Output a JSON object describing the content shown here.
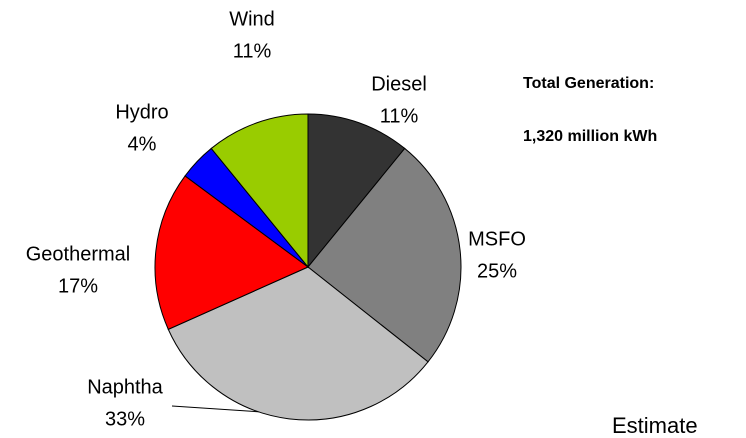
{
  "chart_data": {
    "type": "pie",
    "categories": [
      "Diesel",
      "MSFO",
      "Naphtha",
      "Geothermal",
      "Hydro",
      "Wind"
    ],
    "values": [
      11,
      25,
      33,
      17,
      4,
      11
    ],
    "value_labels": [
      "11%",
      "25%",
      "33%",
      "17%",
      "4%",
      "11%"
    ],
    "colors": [
      "#333333",
      "#808080",
      "#c0c0c0",
      "#ff0000",
      "#0000ff",
      "#99cc00"
    ],
    "annotations": [
      "Total Generation:",
      "1,320 million kWh",
      "Estimate"
    ]
  }
}
